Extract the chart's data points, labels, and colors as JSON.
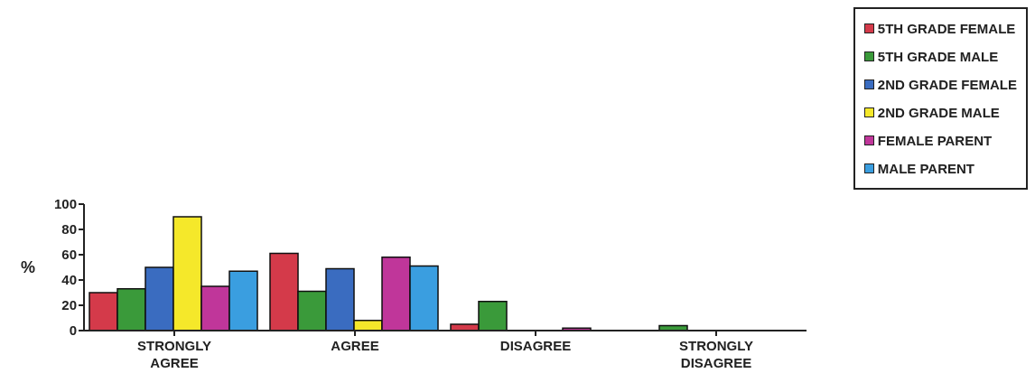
{
  "chart_data": {
    "type": "bar",
    "ylabel": "%",
    "categories": [
      "STRONGLY AGREE",
      "AGREE",
      "DISAGREE",
      "STRONGLY DISAGREE"
    ],
    "series": [
      {
        "name": "5TH GRADE FEMALE",
        "color": "#d43a4a",
        "values": [
          30,
          61,
          5,
          0
        ]
      },
      {
        "name": "5TH GRADE MALE",
        "color": "#3a9a3a",
        "values": [
          33,
          31,
          23,
          4
        ]
      },
      {
        "name": "2ND GRADE FEMALE",
        "color": "#3a6cc0",
        "values": [
          50,
          49,
          0,
          0
        ]
      },
      {
        "name": "2ND GRADE MALE",
        "color": "#f5e82a",
        "values": [
          90,
          8,
          0,
          0
        ]
      },
      {
        "name": "FEMALE PARENT",
        "color": "#c0369a",
        "values": [
          35,
          58,
          2,
          0
        ]
      },
      {
        "name": "MALE PARENT",
        "color": "#3a9ee0",
        "values": [
          47,
          51,
          0,
          0
        ]
      }
    ],
    "ylim": [
      0,
      100
    ],
    "yticks": [
      0,
      20,
      40,
      60,
      80,
      100
    ],
    "grid": false,
    "legend": "top right"
  }
}
